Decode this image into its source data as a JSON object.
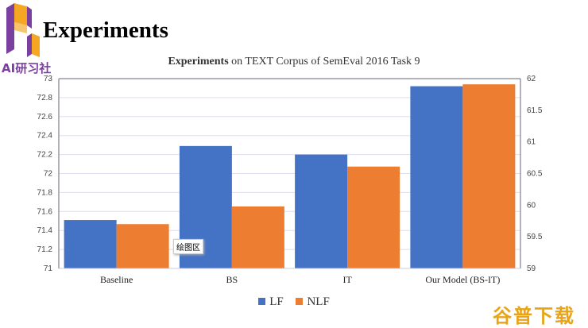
{
  "slide": {
    "title": "Experiments",
    "logo_text": "AI研习社",
    "tooltip": "绘图区",
    "watermark": "谷普下载"
  },
  "chart_data": {
    "type": "bar",
    "title_bold": "Experiments",
    "title_rest": " on TEXT Corpus of SemEval 2016 Task 9",
    "categories": [
      "Baseline",
      "BS",
      "IT",
      "Our Model (BS-IT)"
    ],
    "series": [
      {
        "name": "LF",
        "axis": "left",
        "color": "#4472c4",
        "values": [
          71.51,
          72.29,
          72.2,
          72.92
        ]
      },
      {
        "name": "NLF",
        "axis": "right",
        "color": "#ed7d31",
        "values": [
          59.7,
          59.98,
          60.61,
          61.91
        ]
      }
    ],
    "ylim_left": [
      71,
      73
    ],
    "yticks_left": [
      "71",
      "71.2",
      "71.4",
      "71.6",
      "71.8",
      "72",
      "72.2",
      "72.4",
      "72.6",
      "72.8",
      "73"
    ],
    "ylim_right": [
      59,
      62
    ],
    "yticks_right": [
      "59",
      "59.5",
      "60",
      "60.5",
      "61",
      "61.5",
      "62"
    ],
    "grid": true,
    "legend": "bottom"
  }
}
